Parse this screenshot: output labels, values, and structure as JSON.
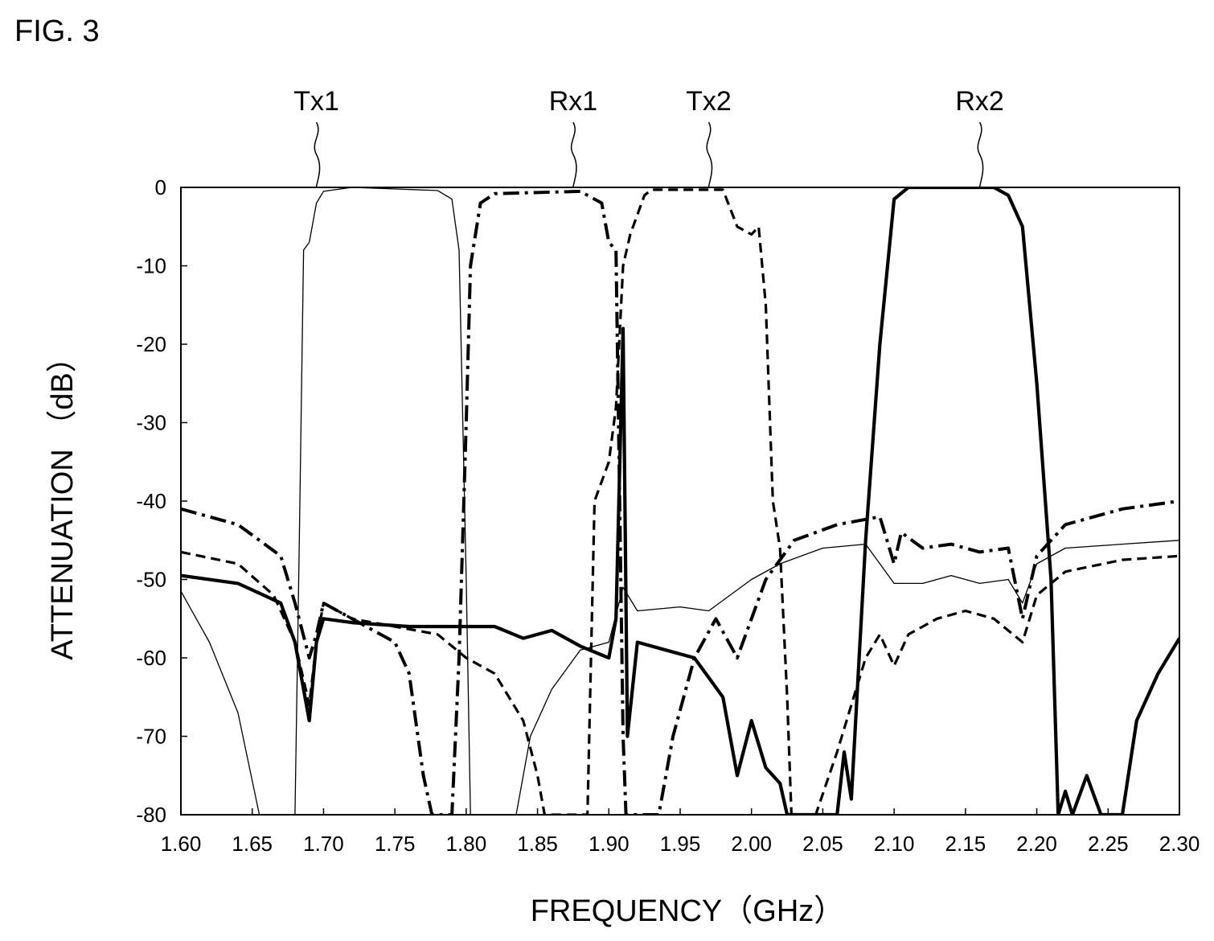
{
  "figure_label": "FIG. 3",
  "chart_data": {
    "type": "line",
    "xlabel": "FREQUENCY（GHz）",
    "ylabel": "ATTENUATION （dB）",
    "xlim": [
      1.6,
      2.3
    ],
    "ylim": [
      -80,
      0
    ],
    "x_ticks": [
      "1.60",
      "1.65",
      "1.70",
      "1.75",
      "1.80",
      "1.85",
      "1.90",
      "1.95",
      "2.00",
      "2.05",
      "2.10",
      "2.15",
      "2.20",
      "2.25",
      "2.30"
    ],
    "y_ticks": [
      "0",
      "-10",
      "-20",
      "-30",
      "-40",
      "-50",
      "-60",
      "-70",
      "-80"
    ],
    "grid": false,
    "series": [
      {
        "name": "Tx1",
        "style": "thin-solid",
        "label_x": 1.695,
        "points": [
          [
            1.6,
            -51.5
          ],
          [
            1.62,
            -58
          ],
          [
            1.64,
            -67
          ],
          [
            1.655,
            -80
          ],
          [
            1.68,
            -80
          ],
          [
            1.683,
            -45
          ],
          [
            1.686,
            -8
          ],
          [
            1.69,
            -7
          ],
          [
            1.695,
            -2
          ],
          [
            1.7,
            -0.5
          ],
          [
            1.72,
            0
          ],
          [
            1.78,
            -0.4
          ],
          [
            1.79,
            -1.5
          ],
          [
            1.795,
            -8
          ],
          [
            1.8,
            -50
          ],
          [
            1.803,
            -80
          ],
          [
            1.835,
            -80
          ],
          [
            1.845,
            -70
          ],
          [
            1.86,
            -64
          ],
          [
            1.88,
            -59
          ],
          [
            1.9,
            -58
          ],
          [
            1.91,
            -51
          ],
          [
            1.92,
            -54
          ],
          [
            1.95,
            -53.5
          ],
          [
            1.97,
            -54
          ],
          [
            2.0,
            -50
          ],
          [
            2.02,
            -48
          ],
          [
            2.05,
            -46
          ],
          [
            2.08,
            -45.5
          ],
          [
            2.1,
            -50.5
          ],
          [
            2.12,
            -50.5
          ],
          [
            2.14,
            -49.5
          ],
          [
            2.16,
            -50.5
          ],
          [
            2.18,
            -50
          ],
          [
            2.19,
            -53
          ],
          [
            2.2,
            -48
          ],
          [
            2.22,
            -46
          ],
          [
            2.26,
            -45.5
          ],
          [
            2.3,
            -45
          ]
        ]
      },
      {
        "name": "Rx1",
        "style": "thick-dash-dot",
        "label_x": 1.875,
        "points": [
          [
            1.6,
            -41
          ],
          [
            1.64,
            -43
          ],
          [
            1.67,
            -47
          ],
          [
            1.68,
            -53
          ],
          [
            1.69,
            -60
          ],
          [
            1.695,
            -57
          ],
          [
            1.7,
            -53
          ],
          [
            1.72,
            -55
          ],
          [
            1.75,
            -58
          ],
          [
            1.76,
            -62
          ],
          [
            1.77,
            -75
          ],
          [
            1.776,
            -80
          ],
          [
            1.79,
            -80
          ],
          [
            1.795,
            -60
          ],
          [
            1.8,
            -30
          ],
          [
            1.803,
            -10
          ],
          [
            1.81,
            -2
          ],
          [
            1.82,
            -0.8
          ],
          [
            1.88,
            -0.5
          ],
          [
            1.895,
            -2
          ],
          [
            1.9,
            -7
          ],
          [
            1.905,
            -8
          ],
          [
            1.91,
            -70
          ],
          [
            1.912,
            -80
          ],
          [
            1.935,
            -80
          ],
          [
            1.945,
            -70
          ],
          [
            1.96,
            -60
          ],
          [
            1.975,
            -55
          ],
          [
            1.99,
            -60
          ],
          [
            2.0,
            -55
          ],
          [
            2.01,
            -50
          ],
          [
            2.03,
            -45
          ],
          [
            2.06,
            -43
          ],
          [
            2.09,
            -42
          ],
          [
            2.1,
            -48
          ],
          [
            2.105,
            -44
          ],
          [
            2.12,
            -46
          ],
          [
            2.14,
            -45.5
          ],
          [
            2.16,
            -46.5
          ],
          [
            2.18,
            -46
          ],
          [
            2.19,
            -55
          ],
          [
            2.2,
            -47
          ],
          [
            2.22,
            -43
          ],
          [
            2.26,
            -41
          ],
          [
            2.3,
            -40
          ]
        ]
      },
      {
        "name": "Tx2",
        "style": "dashed",
        "label_x": 1.97,
        "points": [
          [
            1.6,
            -46.5
          ],
          [
            1.64,
            -48
          ],
          [
            1.665,
            -52
          ],
          [
            1.68,
            -58
          ],
          [
            1.69,
            -66
          ],
          [
            1.695,
            -58
          ],
          [
            1.7,
            -53
          ],
          [
            1.72,
            -55
          ],
          [
            1.75,
            -56
          ],
          [
            1.78,
            -57
          ],
          [
            1.8,
            -60
          ],
          [
            1.82,
            -62
          ],
          [
            1.84,
            -68
          ],
          [
            1.85,
            -75
          ],
          [
            1.855,
            -80
          ],
          [
            1.885,
            -80
          ],
          [
            1.89,
            -40
          ],
          [
            1.9,
            -35
          ],
          [
            1.905,
            -28
          ],
          [
            1.91,
            -10
          ],
          [
            1.915,
            -6
          ],
          [
            1.925,
            -1
          ],
          [
            1.93,
            -0.3
          ],
          [
            1.98,
            -0.3
          ],
          [
            1.99,
            -5
          ],
          [
            2.0,
            -6
          ],
          [
            2.005,
            -5
          ],
          [
            2.01,
            -15
          ],
          [
            2.015,
            -40
          ],
          [
            2.02,
            -46
          ],
          [
            2.025,
            -65
          ],
          [
            2.028,
            -80
          ],
          [
            2.045,
            -80
          ],
          [
            2.06,
            -72
          ],
          [
            2.08,
            -60
          ],
          [
            2.09,
            -57
          ],
          [
            2.1,
            -61
          ],
          [
            2.11,
            -57
          ],
          [
            2.13,
            -55
          ],
          [
            2.15,
            -54
          ],
          [
            2.17,
            -55
          ],
          [
            2.19,
            -58
          ],
          [
            2.2,
            -52
          ],
          [
            2.22,
            -49
          ],
          [
            2.26,
            -47.5
          ],
          [
            2.3,
            -47
          ]
        ]
      },
      {
        "name": "Rx2",
        "style": "thick-solid",
        "label_x": 2.16,
        "points": [
          [
            1.6,
            -49.5
          ],
          [
            1.64,
            -50.5
          ],
          [
            1.67,
            -53
          ],
          [
            1.68,
            -58
          ],
          [
            1.69,
            -68
          ],
          [
            1.695,
            -58
          ],
          [
            1.7,
            -55
          ],
          [
            1.72,
            -55.5
          ],
          [
            1.76,
            -56
          ],
          [
            1.79,
            -56
          ],
          [
            1.8,
            -56
          ],
          [
            1.82,
            -56
          ],
          [
            1.84,
            -57.5
          ],
          [
            1.86,
            -56.5
          ],
          [
            1.88,
            -58.5
          ],
          [
            1.9,
            -60
          ],
          [
            1.905,
            -55
          ],
          [
            1.91,
            -18
          ],
          [
            1.913,
            -70
          ],
          [
            1.92,
            -58
          ],
          [
            1.94,
            -59
          ],
          [
            1.96,
            -60
          ],
          [
            1.98,
            -65
          ],
          [
            1.99,
            -75
          ],
          [
            2.0,
            -68
          ],
          [
            2.01,
            -74
          ],
          [
            2.02,
            -76
          ],
          [
            2.025,
            -80
          ],
          [
            2.06,
            -80
          ],
          [
            2.065,
            -72
          ],
          [
            2.07,
            -78
          ],
          [
            2.08,
            -45
          ],
          [
            2.09,
            -20
          ],
          [
            2.1,
            -1.5
          ],
          [
            2.11,
            0
          ],
          [
            2.17,
            0
          ],
          [
            2.18,
            -1
          ],
          [
            2.19,
            -5
          ],
          [
            2.2,
            -25
          ],
          [
            2.21,
            -50
          ],
          [
            2.215,
            -80
          ],
          [
            2.22,
            -77
          ],
          [
            2.225,
            -80
          ],
          [
            2.235,
            -75
          ],
          [
            2.245,
            -80
          ],
          [
            2.26,
            -80
          ],
          [
            2.27,
            -68
          ],
          [
            2.285,
            -62
          ],
          [
            2.3,
            -57.5
          ]
        ]
      }
    ]
  }
}
